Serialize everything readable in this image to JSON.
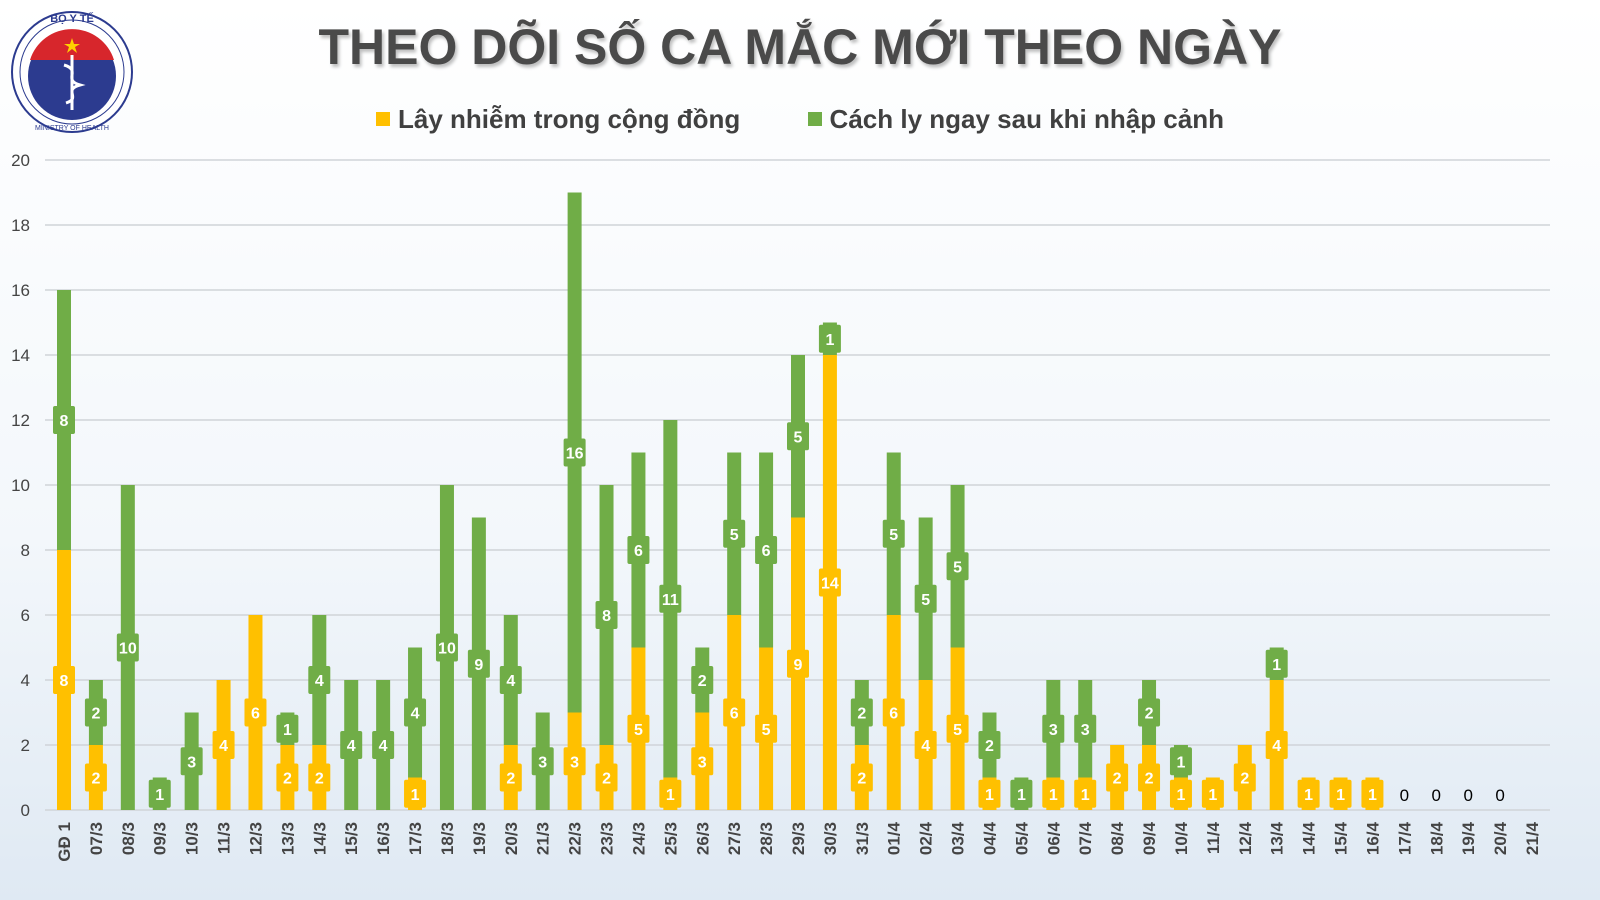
{
  "logo": {
    "top_text": "BỘ Y TẾ",
    "bottom_text": "MINISTRY OF HEALTH"
  },
  "chart_data": {
    "type": "bar",
    "stacked": true,
    "title": "THEO DÕI SỐ CA MẮC MỚI THEO NGÀY",
    "legend_position": "top",
    "grid": true,
    "ylim": [
      0,
      20
    ],
    "yticks": [
      0,
      2,
      4,
      6,
      8,
      10,
      12,
      14,
      16,
      18,
      20
    ],
    "categories": [
      "GĐ 1",
      "07/3",
      "08/3",
      "09/3",
      "10/3",
      "11/3",
      "12/3",
      "13/3",
      "14/3",
      "15/3",
      "16/3",
      "17/3",
      "18/3",
      "19/3",
      "20/3",
      "21/3",
      "22/3",
      "23/3",
      "24/3",
      "25/3",
      "26/3",
      "27/3",
      "28/3",
      "29/3",
      "30/3",
      "31/3",
      "01/4",
      "02/4",
      "03/4",
      "04/4",
      "05/4",
      "06/4",
      "07/4",
      "08/4",
      "09/4",
      "10/4",
      "11/4",
      "12/4",
      "13/4",
      "14/4",
      "15/4",
      "16/4",
      "17/4",
      "18/4",
      "19/4",
      "20/4",
      "21/4"
    ],
    "series": [
      {
        "name": "Lây nhiễm trong cộng đồng",
        "color": "#FFC000",
        "values": [
          8,
          2,
          0,
          0,
          0,
          4,
          6,
          2,
          2,
          0,
          0,
          1,
          0,
          0,
          2,
          0,
          3,
          2,
          5,
          1,
          3,
          6,
          5,
          9,
          14,
          2,
          6,
          4,
          5,
          1,
          0,
          1,
          1,
          2,
          2,
          1,
          1,
          2,
          4,
          1,
          1,
          1,
          0,
          0,
          0,
          0,
          null
        ]
      },
      {
        "name": "Cách ly ngay sau khi nhập cảnh",
        "color": "#70AD47",
        "values": [
          8,
          2,
          10,
          1,
          3,
          0,
          0,
          1,
          4,
          4,
          4,
          4,
          10,
          9,
          4,
          3,
          16,
          8,
          6,
          11,
          2,
          5,
          6,
          5,
          1,
          2,
          5,
          5,
          5,
          2,
          1,
          3,
          3,
          0,
          2,
          1,
          0,
          0,
          1,
          0,
          0,
          0,
          0,
          0,
          0,
          0,
          null
        ]
      }
    ],
    "zero_labels": [
      "0",
      "0",
      "0",
      "0"
    ]
  }
}
